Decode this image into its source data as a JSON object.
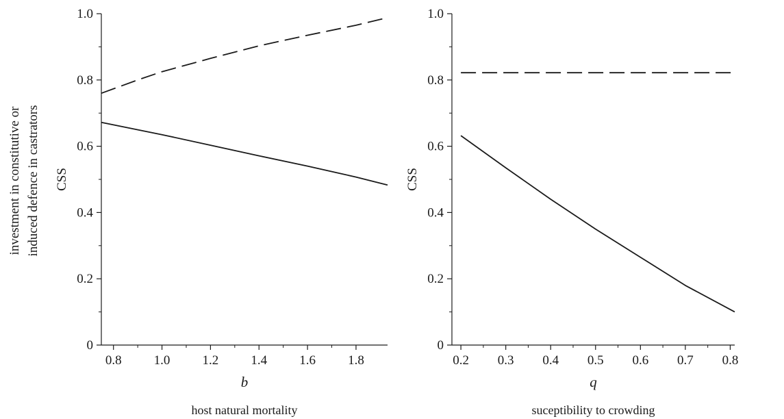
{
  "figure": {
    "outer_ylabel_line1": "investment in constitutive or",
    "outer_ylabel_line2": "induced defence in castrators"
  },
  "chart_data": [
    {
      "type": "line",
      "title": "",
      "ylabel": "CSS",
      "xlabel": "b",
      "xlabel_sub": "host natural mortality",
      "xlim": [
        0.75,
        1.93
      ],
      "ylim": [
        0,
        1.0
      ],
      "xticks": [
        "0.8",
        "1.0",
        "1.2",
        "1.4",
        "1.6",
        "1.8"
      ],
      "xtick_values": [
        0.8,
        1.0,
        1.2,
        1.4,
        1.6,
        1.8
      ],
      "yticks": [
        "0",
        "0.2",
        "0.4",
        "0.6",
        "0.8",
        "1.0"
      ],
      "ytick_values": [
        0,
        0.2,
        0.4,
        0.6,
        0.8,
        1.0
      ],
      "grid": false,
      "series": [
        {
          "style": "dashed",
          "color": "#1a1a1a",
          "x": [
            0.75,
            0.9,
            1.0,
            1.2,
            1.4,
            1.6,
            1.8,
            1.93
          ],
          "y": [
            0.76,
            0.8,
            0.825,
            0.865,
            0.903,
            0.935,
            0.965,
            0.988
          ]
        },
        {
          "style": "solid",
          "color": "#1a1a1a",
          "x": [
            0.75,
            1.0,
            1.2,
            1.4,
            1.6,
            1.8,
            1.93
          ],
          "y": [
            0.672,
            0.635,
            0.603,
            0.571,
            0.54,
            0.507,
            0.483
          ]
        }
      ]
    },
    {
      "type": "line",
      "title": "",
      "ylabel": "CSS",
      "xlabel": "q",
      "xlabel_sub": "suceptibility to crowding",
      "xlim": [
        0.18,
        0.81
      ],
      "ylim": [
        0,
        1.0
      ],
      "xticks": [
        "0.2",
        "0.3",
        "0.4",
        "0.5",
        "0.6",
        "0.7",
        "0.8"
      ],
      "xtick_values": [
        0.2,
        0.3,
        0.4,
        0.5,
        0.6,
        0.7,
        0.8
      ],
      "yticks": [
        "0",
        "0.2",
        "0.4",
        "0.6",
        "0.8",
        "1.0"
      ],
      "ytick_values": [
        0,
        0.2,
        0.4,
        0.6,
        0.8,
        1.0
      ],
      "grid": false,
      "series": [
        {
          "style": "dashed",
          "color": "#1a1a1a",
          "x": [
            0.2,
            0.81
          ],
          "y": [
            0.822,
            0.822
          ]
        },
        {
          "style": "solid",
          "color": "#1a1a1a",
          "x": [
            0.2,
            0.3,
            0.4,
            0.5,
            0.6,
            0.7,
            0.81
          ],
          "y": [
            0.632,
            0.535,
            0.44,
            0.35,
            0.265,
            0.18,
            0.1
          ]
        }
      ]
    }
  ]
}
